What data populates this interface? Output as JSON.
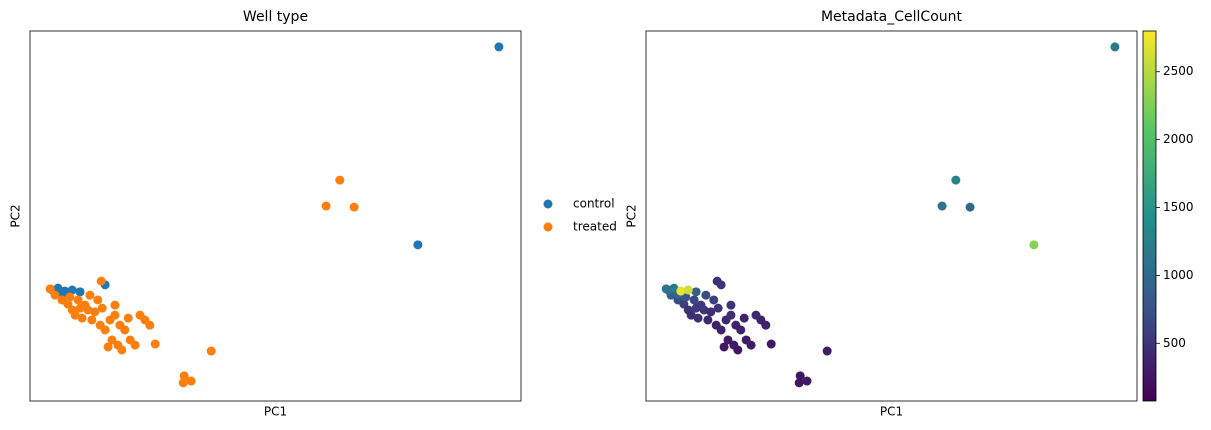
{
  "chart_data": [
    {
      "type": "scatter",
      "title": "Well type",
      "x_label": "PC1",
      "y_label": "PC2",
      "xlim": [
        0,
        100
      ],
      "ylim": [
        0,
        100
      ],
      "legend": "outside right",
      "series": [
        {
          "name": "control",
          "color": "#1f77b4",
          "x": [
            95.5,
            79.0,
            4.5,
            5.7,
            7.1,
            8.6,
            10.2,
            15.3,
            6.5
          ],
          "values": [
            95.7,
            42.2,
            30.0,
            30.5,
            29.7,
            30.0,
            29.5,
            31.4,
            28.9
          ]
        },
        {
          "name": "treated",
          "color": "#ff7f0e",
          "x": [
            63.1,
            60.3,
            66.0,
            36.9,
            25.5,
            31.4,
            31.2,
            32.8,
            4.1,
            5.1,
            6.5,
            7.7,
            8.6,
            9.8,
            9.2,
            10.6,
            11.8,
            12.6,
            11.2,
            13.2,
            14.3,
            15.3,
            16.3,
            17.3,
            18.3,
            19.3,
            16.7,
            17.9,
            20.4,
            21.4,
            23.4,
            24.4,
            22.4,
            20.0,
            15.9,
            18.7,
            14.5,
            13.8,
            12.2,
            8.1,
            10.2,
            14.7,
            17.3
          ],
          "values": [
            59.7,
            52.7,
            52.4,
            13.5,
            15.4,
            6.8,
            4.9,
            5.4,
            30.3,
            28.6,
            27.3,
            26.2,
            24.6,
            27.3,
            23.2,
            22.4,
            24.6,
            21.9,
            25.9,
            24.1,
            20.5,
            19.2,
            21.9,
            23.2,
            20.5,
            19.2,
            16.5,
            15.1,
            16.5,
            15.1,
            21.9,
            20.5,
            23.2,
            22.4,
            14.6,
            13.8,
            32.4,
            27.3,
            28.6,
            28.1,
            25.1,
            25.1,
            25.9
          ]
        }
      ]
    },
    {
      "type": "scatter",
      "title": "Metadata_CellCount",
      "x_label": "PC1",
      "y_label": "PC2",
      "xlim": [
        0,
        100
      ],
      "ylim": [
        0,
        100
      ],
      "x": [
        4.1,
        5.1,
        6.5,
        7.7,
        8.6,
        9.8,
        9.2,
        10.6,
        11.8,
        12.6,
        11.2,
        13.2,
        14.3,
        15.3,
        16.3,
        17.3,
        18.3,
        19.3,
        16.7,
        17.9,
        20.4,
        21.4,
        23.4,
        24.4,
        22.4,
        20.0,
        15.9,
        18.7,
        14.5,
        13.8,
        12.2,
        8.1,
        10.2,
        14.7,
        17.3,
        63.1,
        60.3,
        66.0,
        36.9,
        25.5,
        31.4,
        31.2,
        32.8,
        95.5,
        79.0,
        4.5,
        5.7,
        6.5,
        10.2,
        15.3,
        7.1,
        8.6
      ],
      "values": [
        30.3,
        28.6,
        27.3,
        26.2,
        24.6,
        27.3,
        23.2,
        22.4,
        24.6,
        21.9,
        25.9,
        24.1,
        20.5,
        19.2,
        21.9,
        23.2,
        20.5,
        19.2,
        16.5,
        15.1,
        16.5,
        15.1,
        21.9,
        20.5,
        23.2,
        22.4,
        14.6,
        13.8,
        32.4,
        27.3,
        28.6,
        28.1,
        25.1,
        25.1,
        25.9,
        59.7,
        52.7,
        52.4,
        13.5,
        15.4,
        6.8,
        4.9,
        5.4,
        95.7,
        42.2,
        30.0,
        30.5,
        28.9,
        29.5,
        31.4,
        29.7,
        30.0
      ],
      "color_values": [
        1100,
        900,
        700,
        600,
        500,
        650,
        450,
        450,
        500,
        400,
        550,
        450,
        350,
        350,
        400,
        450,
        350,
        350,
        300,
        300,
        300,
        300,
        350,
        350,
        400,
        350,
        250,
        250,
        450,
        600,
        700,
        800,
        550,
        500,
        500,
        1300,
        1100,
        1000,
        300,
        300,
        250,
        250,
        300,
        1200,
        2300,
        1100,
        1200,
        1000,
        900,
        500,
        2700,
        2600
      ],
      "colormap": [
        "#440154",
        "#3b528b",
        "#21918c",
        "#5ec962",
        "#fde725"
      ],
      "clim": [
        75,
        2800
      ],
      "cticks": [
        500,
        1000,
        1500,
        2000,
        2500
      ]
    }
  ]
}
